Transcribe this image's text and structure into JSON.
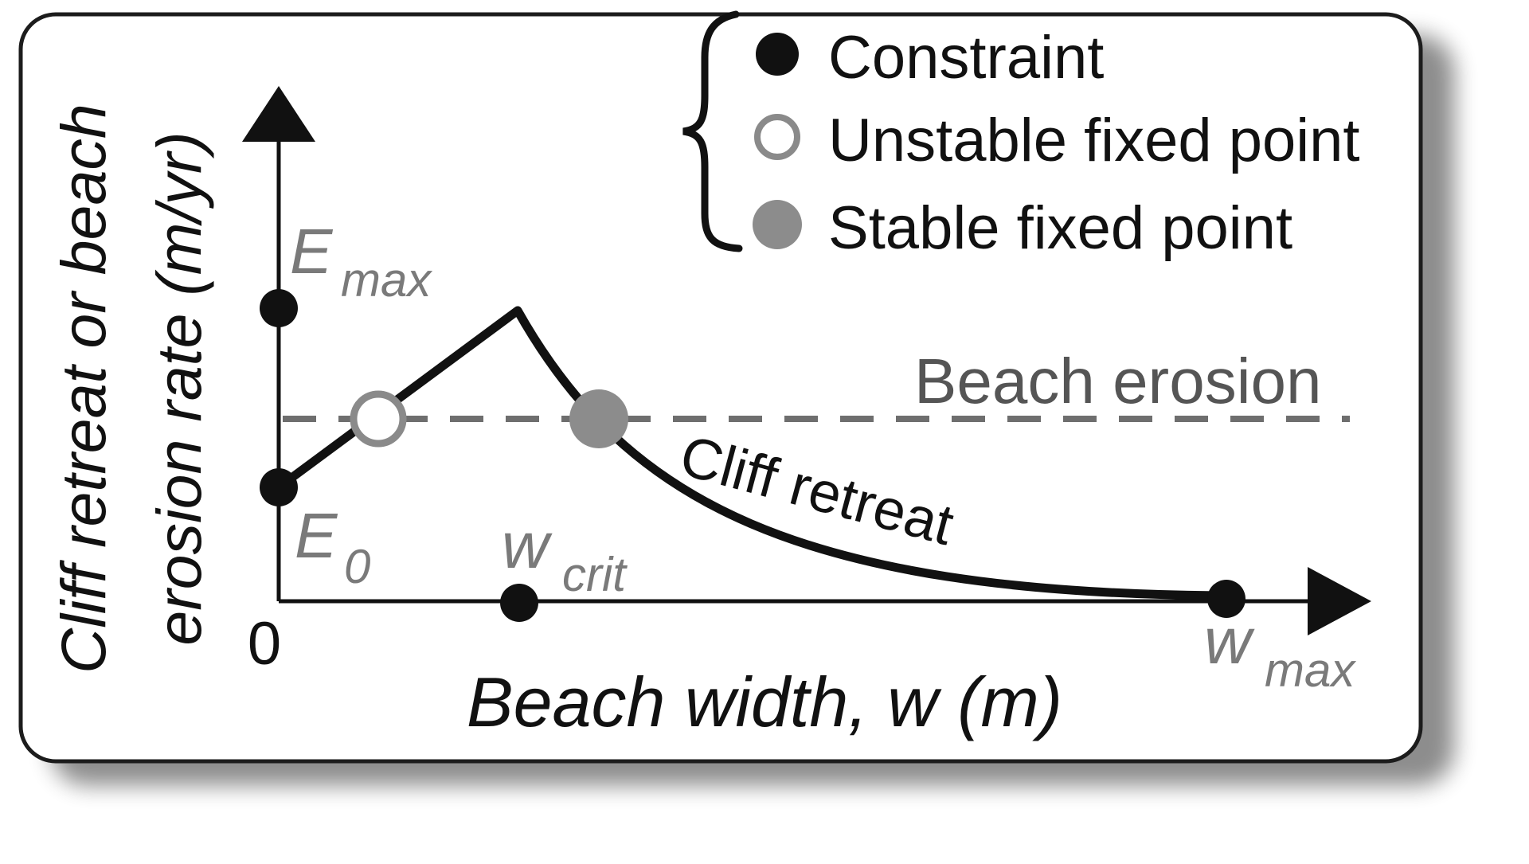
{
  "axes": {
    "y_label_line1": "Cliff retreat or beach",
    "y_label_line2": "erosion rate (m/yr)",
    "x_label": "Beach width, w (m)",
    "origin": "0"
  },
  "symbols": {
    "e_max_base": "E",
    "e_max_sub": "max",
    "e_0_base": "E",
    "e_0_sub": "0",
    "w_crit_base": "w",
    "w_crit_sub": "crit",
    "w_max_base": "w",
    "w_max_sub": "max"
  },
  "curves": {
    "beach_erosion": "Beach erosion",
    "cliff_retreat": "Cliff retreat"
  },
  "legend": {
    "constraint": "Constraint",
    "unstable": "Unstable fixed point",
    "stable": "Stable fixed point"
  },
  "colors": {
    "constraint": "#111111",
    "unstable_stroke": "#8a8a8a",
    "stable_fill": "#8c8c8c",
    "gray_label": "#7a7a7a",
    "dashed_line": "#6e6e6e"
  }
}
